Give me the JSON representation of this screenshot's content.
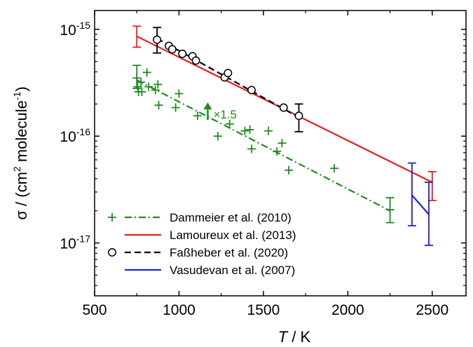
{
  "chart_data": {
    "type": "scatter",
    "title": "",
    "xlabel": {
      "var": "T",
      "unit": " / K"
    },
    "ylabel": {
      "pre": "σ / (cm",
      "sup1": "2",
      "mid": " molecule",
      "sup2": "-1",
      "post": ")"
    },
    "xlim": [
      500,
      2700
    ],
    "ylim": [
      3.2e-18,
      1.5e-15
    ],
    "yscale": "log",
    "grid": false,
    "legend_position": "bottom-left",
    "x_ticks": [
      500,
      1000,
      1500,
      2000,
      2500
    ],
    "x_tick_labels": [
      "500",
      "1000",
      "1500",
      "2000",
      "2500"
    ],
    "y_ticks": [
      {
        "value": 1e-15,
        "base": "10",
        "exp": "-15"
      },
      {
        "value": 1e-16,
        "base": "10",
        "exp": "-16"
      },
      {
        "value": 1e-17,
        "base": "10",
        "exp": "-17"
      }
    ],
    "colors": {
      "dammeier": "#1f8a1f",
      "lamoureux": "#ee1c1c",
      "fassheber": "#000000",
      "vasudevan": "#2020dd"
    },
    "annotation": {
      "text": "×1.5",
      "x": 1220,
      "y": 1.75e-16,
      "color": "#1f8a1f"
    },
    "series": [
      {
        "name": "Dammeier et al. (2010)",
        "marker": "plus",
        "linestyle": "dashdot",
        "color": "#1f8a1f",
        "points": [
          [
            750,
            3.5e-16
          ],
          [
            755,
            2.9e-16
          ],
          [
            760,
            2.6e-16
          ],
          [
            775,
            3.2e-16
          ],
          [
            780,
            2.6e-16
          ],
          [
            810,
            3.95e-16
          ],
          [
            820,
            2.9e-16
          ],
          [
            860,
            2.7e-16
          ],
          [
            875,
            3.05e-16
          ],
          [
            880,
            1.95e-16
          ],
          [
            980,
            1.85e-16
          ],
          [
            1000,
            2.5e-16
          ],
          [
            1110,
            1.55e-16
          ],
          [
            1230,
            1e-16
          ],
          [
            1300,
            1.3e-16
          ],
          [
            1390,
            1.12e-16
          ],
          [
            1420,
            1.15e-16
          ],
          [
            1430,
            7.6e-17
          ],
          [
            1530,
            1.12e-16
          ],
          [
            1580,
            7.2e-17
          ],
          [
            1610,
            8.6e-17
          ],
          [
            1650,
            4.8e-17
          ],
          [
            1920,
            5e-17
          ],
          [
            2250,
            2.05e-17
          ]
        ],
        "fit": [
          [
            750,
            3.35e-16
          ],
          [
            2250,
            2e-17
          ]
        ],
        "error_bars": [
          [
            750,
            2.8e-16,
            4.6e-16
          ],
          [
            2250,
            1.55e-17,
            2.65e-17
          ]
        ]
      },
      {
        "name": "Lamoureux et al. (2013)",
        "marker": "none",
        "linestyle": "solid",
        "color": "#ee1c1c",
        "fit": [
          [
            750,
            8.6e-16
          ],
          [
            2500,
            3.7e-17
          ]
        ],
        "error_bars": [
          [
            750,
            6.8e-16,
            1.07e-15
          ],
          [
            2500,
            2.5e-17,
            4.65e-17
          ]
        ]
      },
      {
        "name": "Faßheber et al. (2020)",
        "marker": "circle",
        "linestyle": "dashed",
        "color": "#000000",
        "points": [
          [
            870,
            8e-16
          ],
          [
            940,
            7e-16
          ],
          [
            960,
            6.5e-16
          ],
          [
            1020,
            5.9e-16
          ],
          [
            1080,
            5.6e-16
          ],
          [
            1100,
            5.1e-16
          ],
          [
            1270,
            3.55e-16
          ],
          [
            1290,
            3.9e-16
          ],
          [
            1430,
            2.7e-16
          ],
          [
            1620,
            1.85e-16
          ],
          [
            1710,
            1.55e-16
          ]
        ],
        "fit": [
          [
            870,
            8.2e-16
          ],
          [
            1710,
            1.5e-16
          ]
        ],
        "error_bars": [
          [
            870,
            6e-16,
            1.04e-15
          ],
          [
            1710,
            1.1e-16,
            2e-16
          ]
        ]
      },
      {
        "name": "Vasudevan et al. (2007)",
        "marker": "none",
        "linestyle": "solid",
        "color": "#2020dd",
        "fit": [
          [
            2380,
            2.8e-17
          ],
          [
            2480,
            1.85e-17
          ]
        ],
        "error_bars": [
          [
            2380,
            1.45e-17,
            5.6e-17
          ],
          [
            2480,
            9.5e-18,
            3.7e-17
          ]
        ]
      }
    ]
  }
}
